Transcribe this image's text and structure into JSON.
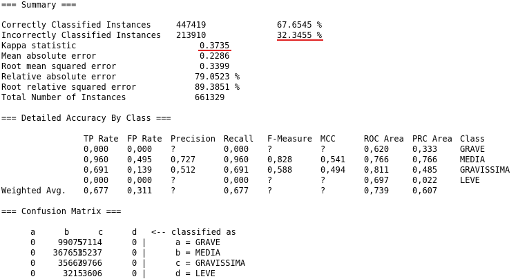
{
  "summary": {
    "header": "=== Summary ===",
    "rows": [
      {
        "label": "Correctly Classified Instances",
        "value": "447419",
        "pct": "67.6545 %"
      },
      {
        "label": "Incorrectly Classified Instances",
        "value": "213910",
        "pct": "32.3455 %"
      },
      {
        "label": "Kappa statistic",
        "value": "0.3735"
      },
      {
        "label": "Mean absolute error",
        "value": "0.2286"
      },
      {
        "label": "Root mean squared error",
        "value": "0.3399"
      },
      {
        "label": "Relative absolute error",
        "value": "79.0523 %"
      },
      {
        "label": "Root relative squared error",
        "value": "89.3851 %"
      },
      {
        "label": "Total Number of Instances",
        "value": "661329"
      }
    ]
  },
  "accuracy": {
    "header": "=== Detailed Accuracy By Class ===",
    "columns": [
      "TP Rate",
      "FP Rate",
      "Precision",
      "Recall",
      "F-Measure",
      "MCC",
      "ROC Area",
      "PRC Area",
      "Class"
    ],
    "rows": [
      {
        "label": "",
        "cells": [
          "0,000",
          "0,000",
          "?",
          "0,000",
          "?",
          "?",
          "0,620",
          "0,333",
          "GRAVE"
        ]
      },
      {
        "label": "",
        "cells": [
          "0,960",
          "0,495",
          "0,727",
          "0,960",
          "0,828",
          "0,541",
          "0,766",
          "0,766",
          "MEDIA"
        ]
      },
      {
        "label": "",
        "cells": [
          "0,691",
          "0,139",
          "0,512",
          "0,691",
          "0,588",
          "0,494",
          "0,811",
          "0,485",
          "GRAVISSIMA"
        ]
      },
      {
        "label": "",
        "cells": [
          "0,000",
          "0,000",
          "?",
          "0,000",
          "?",
          "?",
          "0,697",
          "0,022",
          "LEVE"
        ]
      },
      {
        "label": "Weighted Avg.",
        "cells": [
          "0,677",
          "0,311",
          "?",
          "0,677",
          "?",
          "?",
          "0,739",
          "0,607",
          ""
        ]
      }
    ]
  },
  "confusion": {
    "header": "=== Confusion Matrix ===",
    "col_headers": [
      "a",
      "b",
      "c",
      "d"
    ],
    "arrow_label": "<-- classified as",
    "rows": [
      {
        "cells": [
          "0",
          "99075",
          "57114",
          "0"
        ],
        "sep": "|",
        "label": "a = GRAVE"
      },
      {
        "cells": [
          "0",
          "367653",
          "15237",
          "0"
        ],
        "sep": "|",
        "label": "b = MEDIA"
      },
      {
        "cells": [
          "0",
          "35663",
          "79766",
          "0"
        ],
        "sep": "|",
        "label": "c = GRAVISSIMA"
      },
      {
        "cells": [
          "0",
          "3215",
          "3606",
          "0"
        ],
        "sep": "|",
        "label": "d = LEVE"
      }
    ]
  },
  "colors": {
    "underline": "#e02020",
    "text": "#000000",
    "background": "#ffffff"
  }
}
